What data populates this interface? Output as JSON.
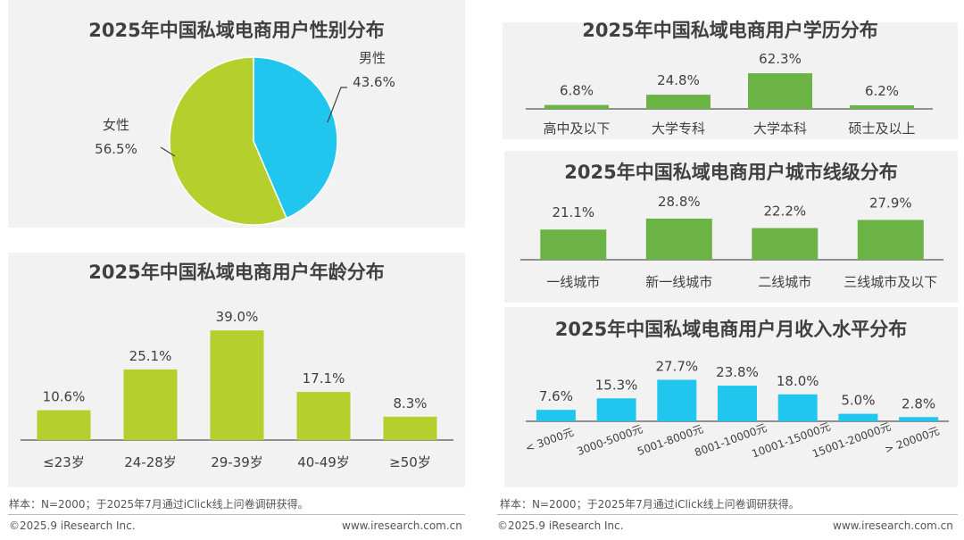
{
  "colors": {
    "panel_bg": "#f2f2f2",
    "yellow_green": "#b5cf2d",
    "green": "#6ab344",
    "blue": "#21c6ef",
    "text": "#404040"
  },
  "footer": {
    "left": {
      "note": "样本：N=2000；于2025年7月通过iClick线上问卷调研获得。",
      "copyright": "©2025.9 iResearch Inc.",
      "url": "www.iresearch.com.cn"
    },
    "right": {
      "note": "样本：N=2000；于2025年7月通过iClick线上问卷调研获得。",
      "copyright": "©2025.9 iResearch Inc.",
      "url": "www.iresearch.com.cn"
    }
  },
  "chart_data": [
    {
      "id": "gender",
      "type": "pie",
      "title": "2025年中国私域电商用户性别分布",
      "categories": [
        "男性",
        "女性"
      ],
      "values": [
        43.6,
        56.5
      ],
      "value_labels": [
        "43.6%",
        "56.5%"
      ],
      "colors": [
        "#21c6ef",
        "#b5cf2d"
      ]
    },
    {
      "id": "age",
      "type": "bar",
      "title": "2025年中国私域电商用户年龄分布",
      "categories": [
        "≤23岁",
        "24-28岁",
        "29-39岁",
        "40-49岁",
        "≥50岁"
      ],
      "values": [
        10.6,
        25.1,
        39.0,
        17.1,
        8.3
      ],
      "value_labels": [
        "10.6%",
        "25.1%",
        "39.0%",
        "17.1%",
        "8.3%"
      ],
      "color": "#b5cf2d",
      "ylim": [
        0,
        40
      ]
    },
    {
      "id": "education",
      "type": "bar",
      "title": "2025年中国私域电商用户学历分布",
      "categories": [
        "高中及以下",
        "大学专科",
        "大学本科",
        "硕士及以上"
      ],
      "values": [
        6.8,
        24.8,
        62.3,
        6.2
      ],
      "value_labels": [
        "6.8%",
        "24.8%",
        "62.3%",
        "6.2%"
      ],
      "color": "#6ab344",
      "ylim": [
        0,
        64
      ]
    },
    {
      "id": "city",
      "type": "bar",
      "title": "2025年中国私域电商用户城市线级分布",
      "categories": [
        "一线城市",
        "新一线城市",
        "二线城市",
        "三线城市及以下"
      ],
      "values": [
        21.1,
        28.8,
        22.2,
        27.9
      ],
      "value_labels": [
        "21.1%",
        "28.8%",
        "22.2%",
        "27.9%"
      ],
      "color": "#6ab344",
      "ylim": [
        0,
        30
      ]
    },
    {
      "id": "income",
      "type": "bar",
      "title": "2025年中国私域电商用户月收入水平分布",
      "categories": [
        "< 3000元",
        "3000-5000元",
        "5001-8000元",
        "8001-10000元",
        "10001-15000元",
        "15001-20000元",
        "> 20000元"
      ],
      "values": [
        7.6,
        15.3,
        27.7,
        23.8,
        18.0,
        5.0,
        2.8
      ],
      "value_labels": [
        "7.6%",
        "15.3%",
        "27.7%",
        "23.8%",
        "18.0%",
        "5.0%",
        "2.8%"
      ],
      "color": "#21c6ef",
      "ylim": [
        0,
        28
      ]
    }
  ]
}
